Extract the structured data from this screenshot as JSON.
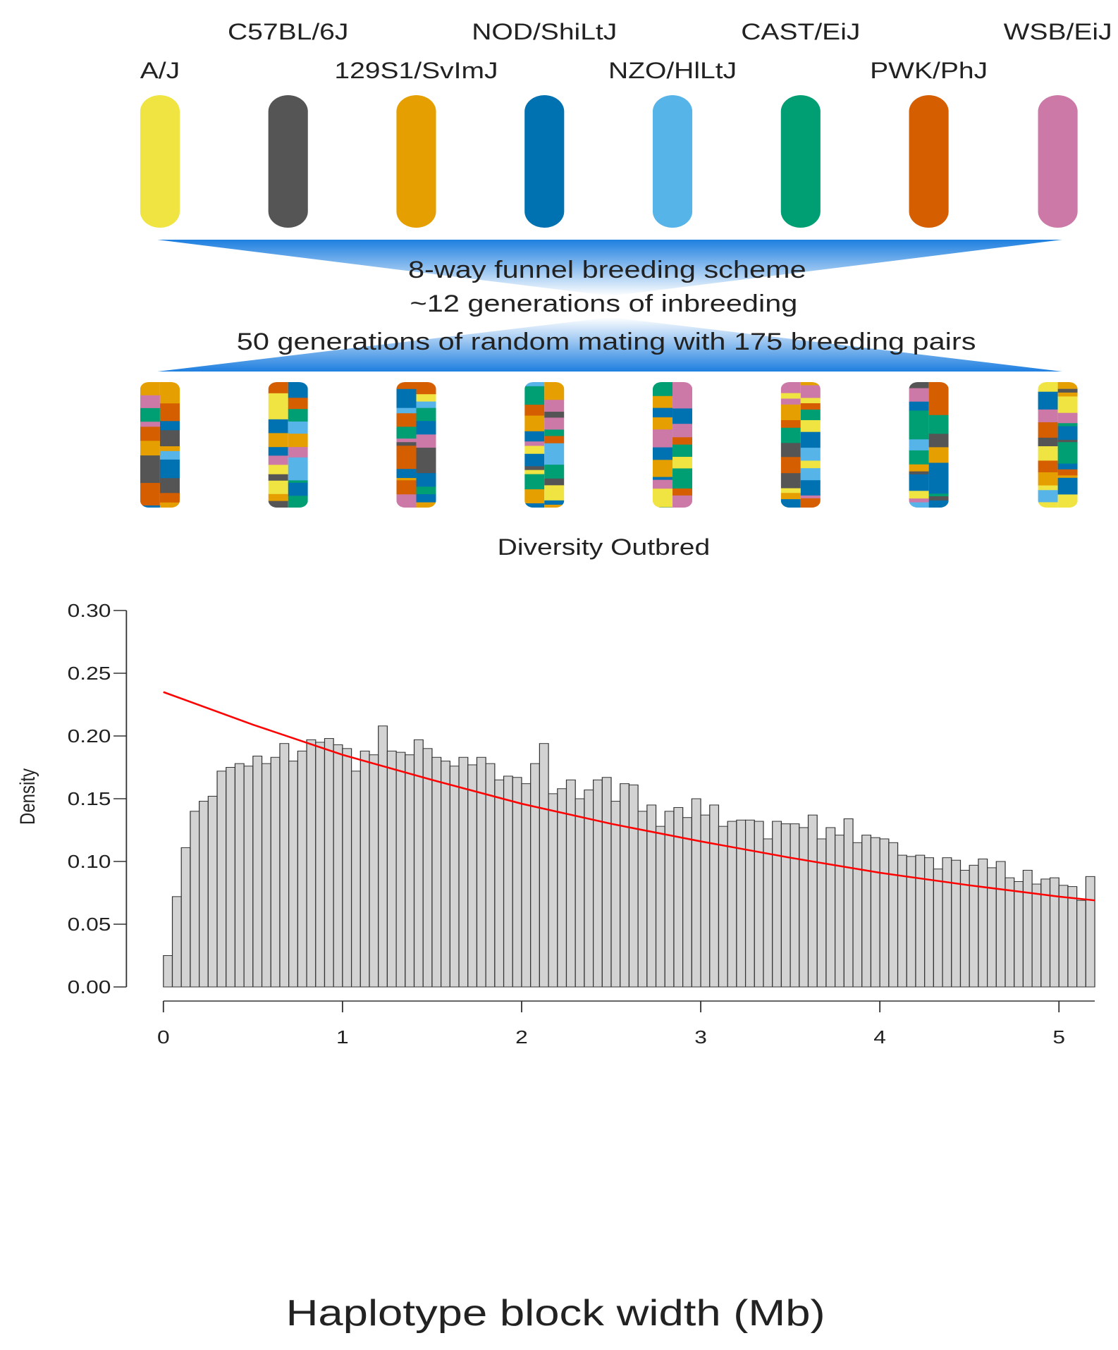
{
  "diagram": {
    "strains": [
      {
        "name": "A/J",
        "color": "#f0e442"
      },
      {
        "name": "C57BL/6J",
        "color": "#555555"
      },
      {
        "name": "129S1/SvImJ",
        "color": "#e69f00"
      },
      {
        "name": "NOD/ShiLtJ",
        "color": "#0072b2"
      },
      {
        "name": "NZO/HlLtJ",
        "color": "#56b4e9"
      },
      {
        "name": "CAST/EiJ",
        "color": "#009e73"
      },
      {
        "name": "PWK/PhJ",
        "color": "#d55e00"
      },
      {
        "name": "WSB/EiJ",
        "color": "#cc79a7"
      }
    ],
    "funnel_text": [
      "8-way funnel breeding scheme",
      "~12 generations of inbreeding",
      "50 generations of random mating with 175 breeding pairs"
    ],
    "population": "Diversity Outbred"
  },
  "chart_data": {
    "type": "histogram",
    "xlabel": "Haplotype block width (Mb)",
    "ylabel": "Density",
    "color": "#d3d3d3",
    "bins": [
      0,
      0.05,
      0.1,
      0.15,
      0.2,
      0.25,
      0.3,
      0.35,
      0.4,
      0.45,
      0.5,
      0.55,
      0.6,
      0.65,
      0.7,
      0.75,
      0.8,
      0.85,
      0.9,
      0.95,
      1,
      1.05,
      1.1,
      1.15,
      1.2,
      1.25,
      1.3,
      1.35,
      1.4,
      1.45,
      1.5,
      1.55,
      1.6,
      1.65,
      1.7,
      1.75,
      1.8,
      1.85,
      1.9,
      1.95,
      2,
      2.05,
      2.1,
      2.15,
      2.2,
      2.25,
      2.3,
      2.35,
      2.4,
      2.45,
      2.5,
      2.55,
      2.6,
      2.65,
      2.7,
      2.75,
      2.8,
      2.85,
      2.9,
      2.95,
      3,
      3.05,
      3.1,
      3.15,
      3.2,
      3.25,
      3.3,
      3.35,
      3.4,
      3.45,
      3.5,
      3.55,
      3.6,
      3.65,
      3.7,
      3.75,
      3.8,
      3.85,
      3.9,
      3.95,
      4,
      4.05,
      4.1,
      4.15,
      4.2,
      4.25,
      4.3,
      4.35,
      4.4,
      4.45,
      4.5,
      4.55,
      4.6,
      4.65,
      4.7,
      4.75,
      4.8,
      4.85,
      4.9,
      4.95,
      5,
      5.05,
      5.1,
      5.15,
      5.2
    ],
    "values": [
      0.025,
      0.072,
      0.111,
      0.14,
      0.148,
      0.152,
      0.172,
      0.175,
      0.178,
      0.176,
      0.184,
      0.178,
      0.183,
      0.194,
      0.18,
      0.188,
      0.197,
      0.195,
      0.198,
      0.193,
      0.19,
      0.172,
      0.188,
      0.185,
      0.208,
      0.188,
      0.187,
      0.185,
      0.197,
      0.19,
      0.183,
      0.18,
      0.176,
      0.183,
      0.177,
      0.183,
      0.178,
      0.165,
      0.168,
      0.167,
      0.162,
      0.178,
      0.194,
      0.154,
      0.158,
      0.165,
      0.15,
      0.157,
      0.165,
      0.167,
      0.148,
      0.162,
      0.161,
      0.14,
      0.145,
      0.128,
      0.14,
      0.143,
      0.135,
      0.15,
      0.137,
      0.145,
      0.128,
      0.132,
      0.133,
      0.133,
      0.132,
      0.118,
      0.132,
      0.13,
      0.13,
      0.127,
      0.137,
      0.118,
      0.127,
      0.121,
      0.134,
      0.115,
      0.121,
      0.119,
      0.118,
      0.115,
      0.105,
      0.104,
      0.105,
      0.103,
      0.094,
      0.103,
      0.101,
      0.093,
      0.097,
      0.102,
      0.095,
      0.1,
      0.087,
      0.084,
      0.093,
      0.082,
      0.086,
      0.087,
      0.081,
      0.08,
      0.069,
      0.088
    ],
    "fit": {
      "color": "#ff0000",
      "x": [
        0,
        0.5,
        1,
        1.5,
        2,
        2.5,
        3,
        3.5,
        4,
        4.5,
        5,
        5.2
      ],
      "y": [
        0.235,
        0.209,
        0.185,
        0.165,
        0.146,
        0.13,
        0.116,
        0.103,
        0.091,
        0.081,
        0.072,
        0.069
      ]
    },
    "xlim": [
      0,
      5.2
    ],
    "ylim": [
      0,
      0.3
    ],
    "xticks": [
      0,
      1,
      2,
      3,
      4,
      5
    ],
    "yticks": [
      {
        "value": 0,
        "label": "0.00"
      },
      {
        "value": 0.05,
        "label": "0.05"
      },
      {
        "value": 0.1,
        "label": "0.10"
      },
      {
        "value": 0.15,
        "label": "0.15"
      },
      {
        "value": 0.2,
        "label": "0.20"
      },
      {
        "value": 0.25,
        "label": "0.25"
      },
      {
        "value": 0.3,
        "label": "0.30"
      }
    ]
  }
}
